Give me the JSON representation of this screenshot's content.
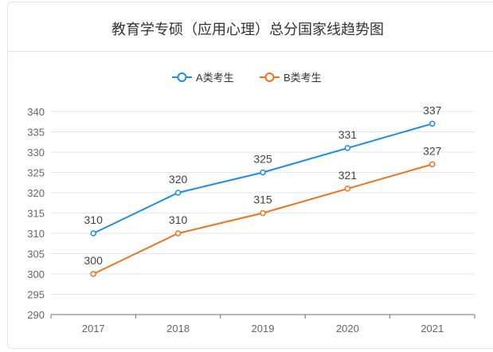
{
  "chart_data": {
    "type": "line",
    "title": "教育学专硕（应用心理）总分国家线趋势图",
    "categories": [
      "2017",
      "2018",
      "2019",
      "2020",
      "2021"
    ],
    "series": [
      {
        "name": "A类考生",
        "color": "#1a8cf0",
        "values": [
          310,
          320,
          325,
          331,
          337
        ]
      },
      {
        "name": "B类考生",
        "color": "#f0721a",
        "values": [
          300,
          310,
          315,
          321,
          327
        ]
      }
    ],
    "ylim": [
      290,
      340
    ],
    "yticks": [
      290,
      295,
      300,
      305,
      310,
      315,
      320,
      325,
      330,
      335,
      340
    ],
    "grid": true,
    "legend": "top-center",
    "data_labels": true
  }
}
